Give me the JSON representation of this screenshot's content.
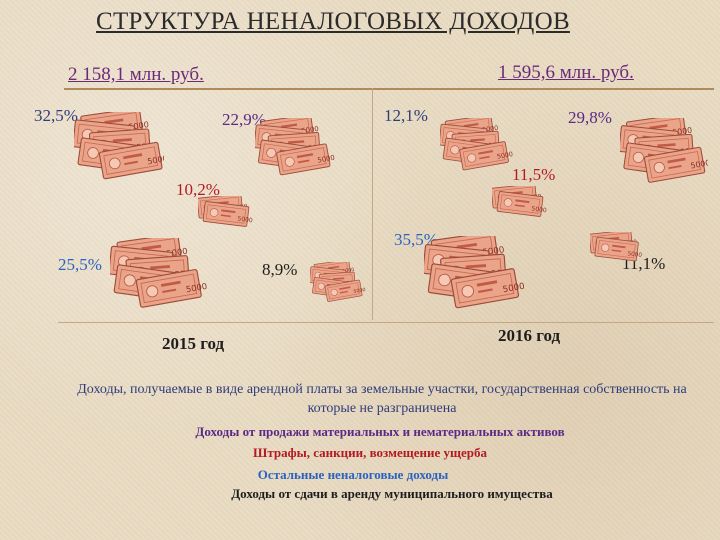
{
  "title": "СТРУКТУРА НЕНАЛОГОВЫХ ДОХОДОВ",
  "totals": {
    "y2015": "2 158,1 млн. руб.",
    "y2016": "1 595,6 млн. руб."
  },
  "years": {
    "y2015": "2015 год",
    "y2016": "2016 год"
  },
  "percents_2015": {
    "land_rent": "32,5%",
    "material_assets": "22,9%",
    "fines": "10,2%",
    "other": "25,5%",
    "municipal_rent": "8,9%"
  },
  "percents_2016": {
    "land_rent": "12,1%",
    "material_assets": "29,8%",
    "fines": "11,5%",
    "other": "35,5%",
    "municipal_rent": "11,1%"
  },
  "legend": {
    "land_rent": "Доходы, получаемые в виде арендной платы за земельные участки, государственная собственность на которые не разграничена",
    "material_assets": "Доходы  от продажи материальных и нематериальных активов",
    "fines": "Штрафы, санкции, возмещение ущерба",
    "other": "Остальные неналоговые доходы",
    "municipal_rent": "Доходы от сдачи в аренду муниципального имущества"
  },
  "colors": {
    "navy": "#2f3c7a",
    "purple": "#5b2a86",
    "red": "#b31b23",
    "blue": "#2a62c0",
    "black": "#1e1e1e",
    "banknote": "#e89b7f"
  },
  "icons": [
    "banknote-stack-icon"
  ]
}
